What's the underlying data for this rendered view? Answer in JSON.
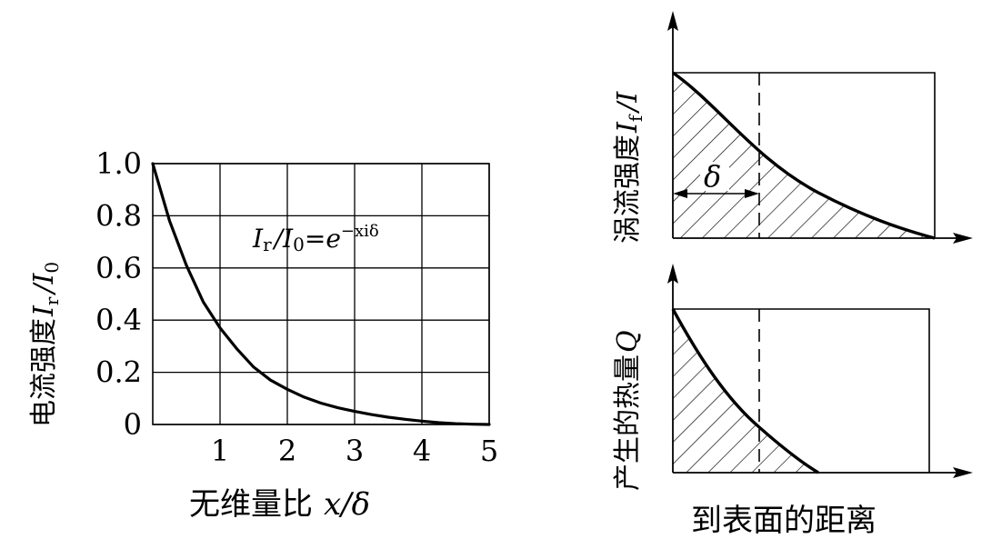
{
  "chart_data": [
    {
      "type": "line",
      "ylabel_text": "电流强度",
      "ylabel_math": "I",
      "ylabel_sub": "r",
      "ylabel_tail": "/I",
      "ylabel_tail_sub": "0",
      "xlabel_text": "无维量比",
      "xlabel_math": "x/δ",
      "formula_lhs": "I",
      "formula_lhs_sub": "r",
      "formula_mid": "/I",
      "formula_mid_sub": "0",
      "formula_eq": "=e",
      "formula_exp": "−xiδ",
      "xlim": [
        0,
        5
      ],
      "ylim": [
        0,
        1.0
      ],
      "x_ticks": [
        "1",
        "2",
        "3",
        "4",
        "5"
      ],
      "y_ticks": [
        "1.0",
        "0.8",
        "0.6",
        "0.4",
        "0.2",
        "0"
      ],
      "x_tick_values": [
        1,
        2,
        3,
        4,
        5
      ],
      "y_tick_values": [
        1.0,
        0.8,
        0.6,
        0.4,
        0.2,
        0
      ],
      "grid": true,
      "series": [
        {
          "x": [
            0,
            0.25,
            0.5,
            0.75,
            1.0,
            1.25,
            1.5,
            1.75,
            2.0,
            2.25,
            2.5,
            2.75,
            3.0,
            3.25,
            3.5,
            3.75,
            4.0,
            4.25,
            4.5,
            4.75,
            5.0
          ],
          "y": [
            1.0,
            0.78,
            0.61,
            0.47,
            0.37,
            0.29,
            0.22,
            0.17,
            0.135,
            0.105,
            0.082,
            0.064,
            0.05,
            0.038,
            0.028,
            0.02,
            0.013,
            0.007,
            0.003,
            0.001,
            0.0
          ]
        }
      ]
    },
    {
      "type": "area",
      "ylabel_text": "涡流强度",
      "ylabel_math": "I",
      "ylabel_sub": "f",
      "ylabel_tail": "/I",
      "delta_label": "δ",
      "hatched": true
    },
    {
      "type": "area",
      "ylabel_text": "产生的热量",
      "ylabel_math": "Q",
      "hatched": true
    }
  ],
  "shared_xlabel": "到表面的距离"
}
